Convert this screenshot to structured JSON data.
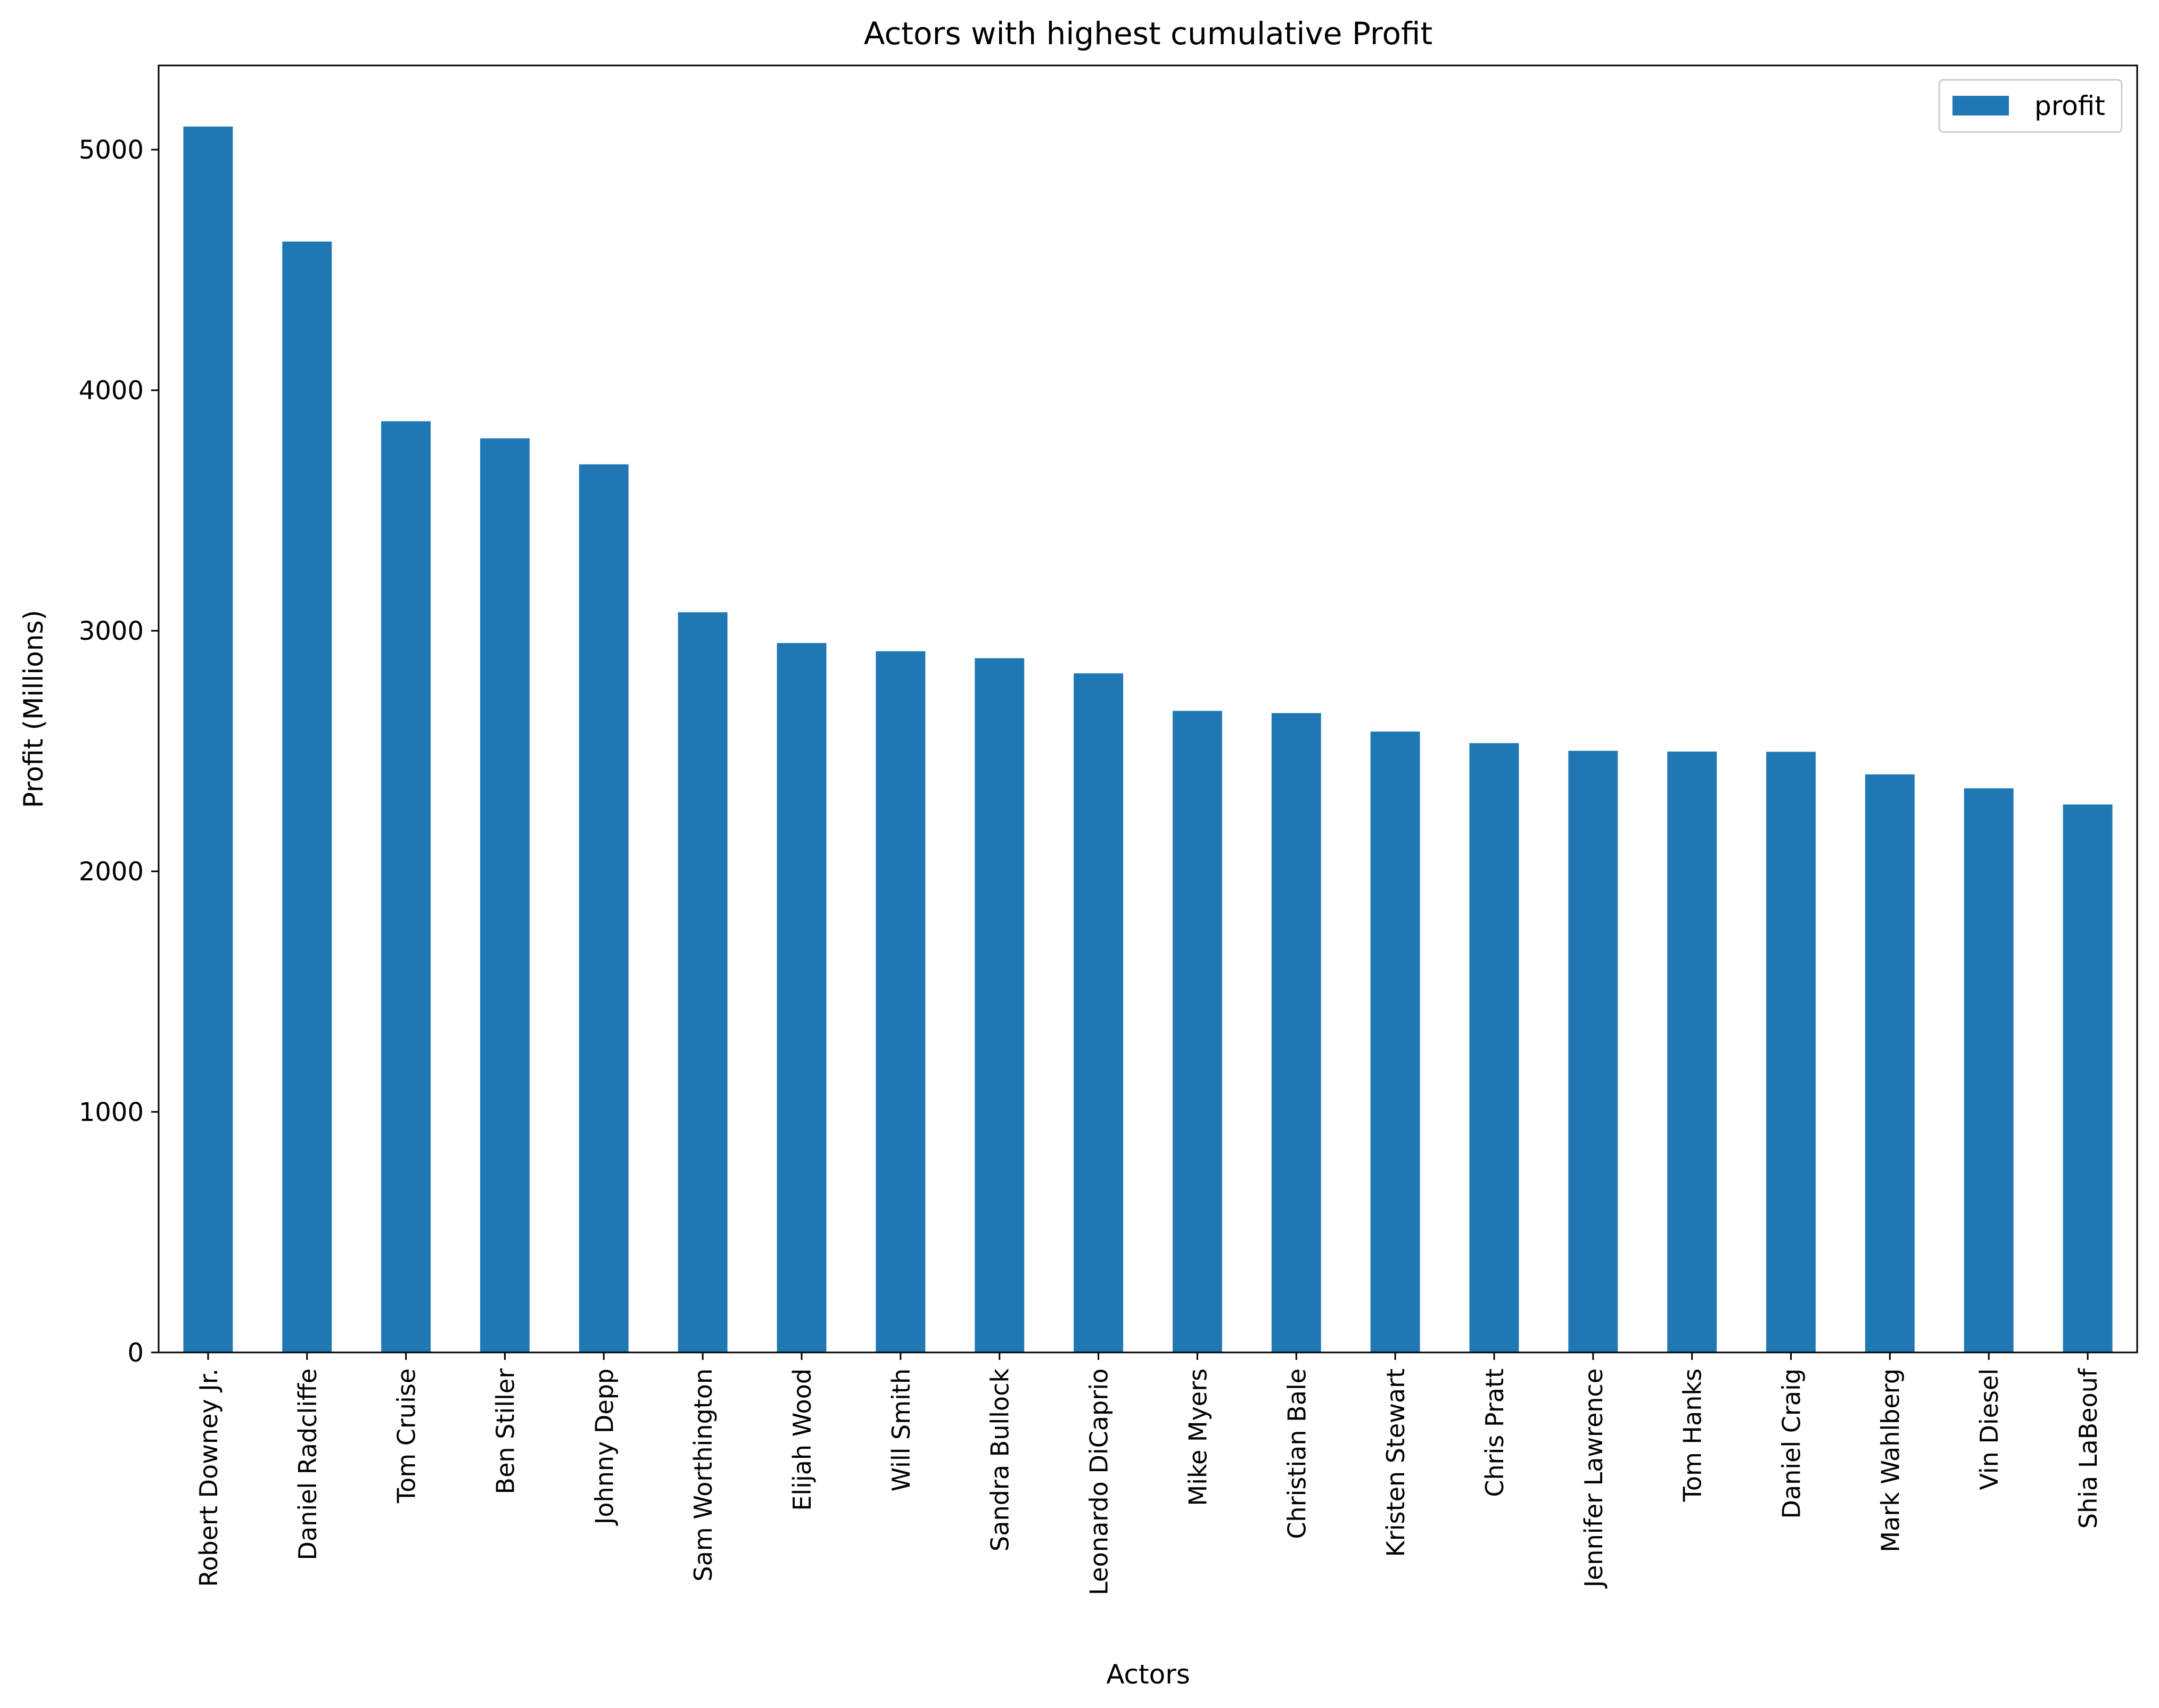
{
  "chart_data": {
    "type": "bar",
    "title": "Actors with highest cumulative Profit",
    "xlabel": "Actors",
    "ylabel": "Profit (Millions)",
    "categories": [
      "Robert Downey Jr.",
      "Daniel Radcliffe",
      "Tom Cruise",
      "Ben Stiller",
      "Johnny Depp",
      "Sam Worthington",
      "Elijah Wood",
      "Will Smith",
      "Sandra Bullock",
      "Leonardo DiCaprio",
      "Mike Myers",
      "Christian Bale",
      "Kristen Stewart",
      "Chris Pratt",
      "Jennifer Lawrence",
      "Tom Hanks",
      "Daniel Craig",
      "Mark Wahlberg",
      "Vin Diesel",
      "Shia LaBeouf"
    ],
    "series": [
      {
        "name": "profit",
        "color": "#1f77b4",
        "values": [
          5096,
          4618,
          3871,
          3800,
          3692,
          3077,
          2949,
          2915,
          2886,
          2823,
          2667,
          2658,
          2581,
          2533,
          2501,
          2498,
          2497,
          2403,
          2345,
          2278
        ]
      }
    ],
    "ylim": [
      0,
      5350
    ],
    "yticks": [
      0,
      1000,
      2000,
      3000,
      4000,
      5000
    ],
    "legend": {
      "position": "top-right",
      "entries": [
        "profit"
      ]
    },
    "grid": false
  }
}
